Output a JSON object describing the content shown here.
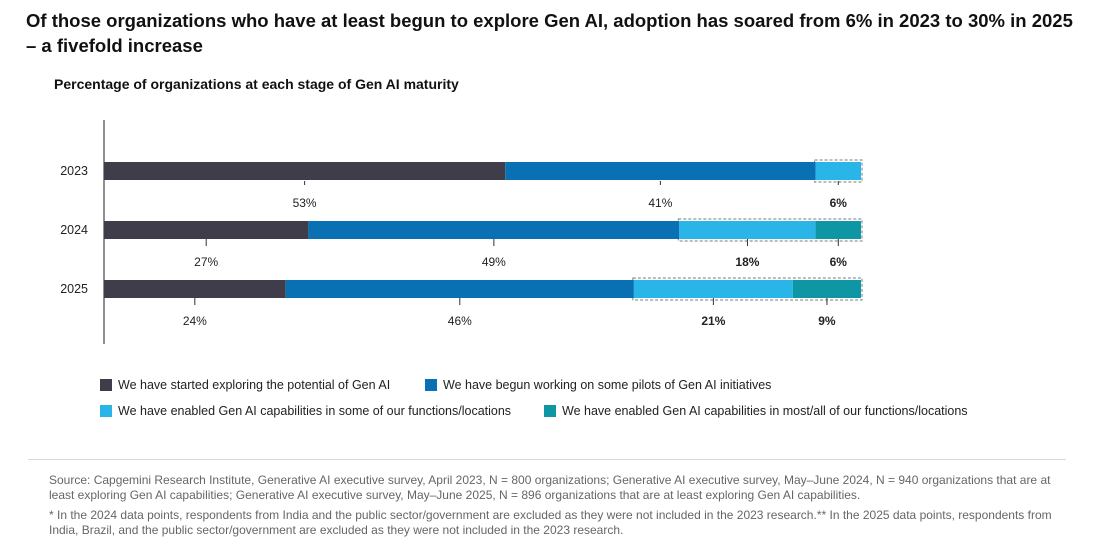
{
  "headline": "Of those organizations who have at least begun to explore Gen AI,  adoption has soared from 6% in 2023 to 30% in 2025 – a fivefold increase",
  "chart_data": {
    "type": "bar",
    "orientation": "horizontal",
    "stacked": true,
    "title": "Percentage of organizations at each stage of Gen AI maturity",
    "categories": [
      "2023",
      "2024",
      "2025"
    ],
    "series": [
      {
        "name": "We have started exploring the potential of Gen AI",
        "color": "#3f3d4a",
        "values": [
          53,
          27,
          24
        ],
        "labels": [
          "53%",
          "27%",
          "24%"
        ]
      },
      {
        "name": "We have begun working on some pilots of Gen AI initiatives",
        "color": "#0a70b4",
        "values": [
          41,
          49,
          46
        ],
        "labels": [
          "41%",
          "49%",
          "46%"
        ]
      },
      {
        "name": "We have enabled Gen AI capabilities in some of our functions/locations",
        "color": "#29b5e8",
        "values": [
          6,
          18,
          21
        ],
        "labels": [
          "6%",
          "18%",
          "21%"
        ]
      },
      {
        "name": "We have enabled Gen AI capabilities in most/all of our functions/locations",
        "color": "#0e96a4",
        "values": [
          0,
          6,
          9
        ],
        "labels": [
          "",
          "6%",
          "9%"
        ]
      }
    ],
    "xlim": [
      0,
      100
    ],
    "legend": "bottom"
  },
  "footnote": {
    "source": "Source: Capgemini Research Institute, Generative AI executive survey, April 2023, N = 800 organizations; Generative AI executive survey, May–June 2024, N = 940 organizations that are at least exploring Gen AI capabilities; Generative AI executive survey, May–June 2025, N = 896 organizations that are at least exploring Gen AI capabilities.",
    "note": "* In the 2024 data points, respondents from India and the public sector/government are excluded as they were not included in the 2023 research.** In the 2025 data points, respondents from India, Brazil, and the public sector/government are excluded as they were not included in the 2023 research."
  }
}
